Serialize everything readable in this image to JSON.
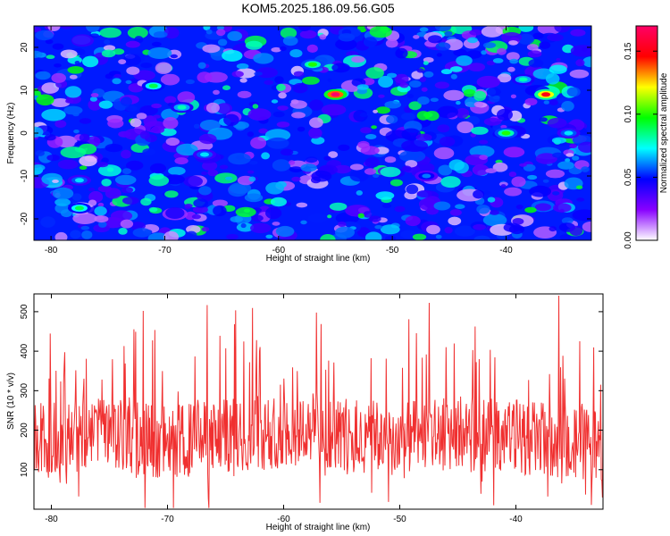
{
  "title": "KOM5.2025.186.09.56.G05",
  "chart_data": [
    {
      "type": "heatmap",
      "xlabel": "Height of straight line (km)",
      "ylabel": "Frequency (Hz)",
      "xlim": [
        -81.5,
        -32.5
      ],
      "ylim": [
        -25,
        25
      ],
      "xticks": [
        -80,
        -70,
        -60,
        -50,
        -40
      ],
      "yticks": [
        20,
        10,
        0,
        -10,
        -20
      ],
      "colorbar": {
        "label": "Normalized spectral amplitude",
        "range": [
          0,
          0.17
        ],
        "ticks": [
          0.0,
          0.05,
          0.1,
          0.15
        ],
        "tick_labels": [
          "0.00",
          "0.05",
          "0.10",
          "0.15"
        ],
        "colormap": [
          "#ffffff",
          "#8800ff",
          "#0000ff",
          "#00ffff",
          "#00ff00",
          "#ffff00",
          "#ff0000",
          "#ff0066"
        ]
      },
      "hotspots": [
        {
          "x": -55,
          "y": 9,
          "v": 0.17
        },
        {
          "x": -36.5,
          "y": 9,
          "v": 0.15
        },
        {
          "x": -57,
          "y": 16,
          "v": 0.1
        },
        {
          "x": -40,
          "y": 0,
          "v": 0.1
        },
        {
          "x": -77.5,
          "y": -17.5,
          "v": 0.09
        },
        {
          "x": -71,
          "y": 11,
          "v": 0.09
        },
        {
          "x": -38.5,
          "y": 12.5,
          "v": 0.08
        },
        {
          "x": -68.5,
          "y": 6,
          "v": 0.08
        },
        {
          "x": -66.5,
          "y": -5,
          "v": 0.07
        },
        {
          "x": -77.5,
          "y": -11,
          "v": 0.07
        },
        {
          "x": -34.5,
          "y": 0,
          "v": 0.07
        },
        {
          "x": -47,
          "y": -10,
          "v": 0.06
        }
      ]
    },
    {
      "type": "line",
      "xlabel": "Height of straight line (km)",
      "ylabel": "SNR (10 * v/v)",
      "xlim": [
        -81.5,
        -32.5
      ],
      "ylim": [
        0,
        545
      ],
      "xticks": [
        -80,
        -70,
        -60,
        -50,
        -40
      ],
      "yticks": [
        100,
        200,
        300,
        400,
        500
      ],
      "color": "#f03030",
      "samples": 980,
      "range": [
        3,
        545
      ],
      "series": [
        {
          "x": [
            -81.5,
            -77.5,
            -75,
            -72.5,
            -70,
            -67.5,
            -65,
            -62.5,
            -60,
            -57.5,
            -55,
            -52.5,
            -50,
            -47.5,
            -45,
            -42.5,
            -40,
            -37.5,
            -35,
            -32.5
          ],
          "y": [
            175,
            190,
            185,
            180,
            170,
            175,
            185,
            190,
            200,
            205,
            190,
            180,
            175,
            185,
            195,
            190,
            185,
            175,
            170,
            165
          ]
        }
      ]
    }
  ]
}
